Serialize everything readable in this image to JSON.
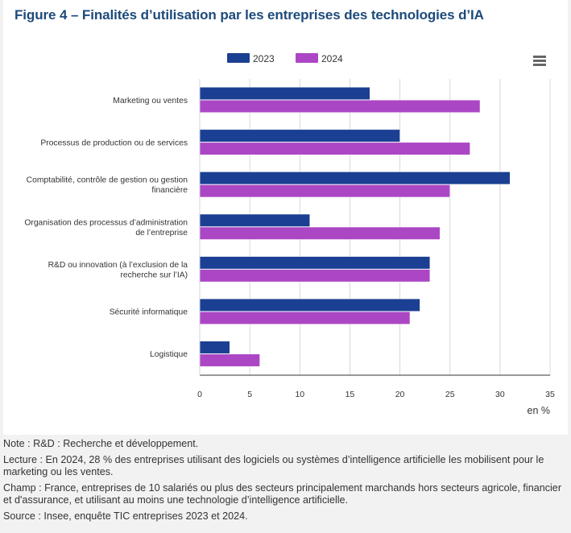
{
  "figure_title": "Figure 4 – Finalités d’utilisation par les entreprises des technologies d’IA",
  "menu_icon": "hamburger-menu-icon",
  "colors": {
    "series_2023": "#1b3f92",
    "series_2024": "#ab47c4",
    "title": "#1d4a7a",
    "grid": "#d8d8d8",
    "axis": "#333333"
  },
  "chart_data": {
    "type": "bar",
    "orientation": "horizontal",
    "categories": [
      [
        "Marketing ou ventes"
      ],
      [
        "Processus de production ou de services"
      ],
      [
        "Comptabilité, contrôle de gestion ou gestion",
        "financière"
      ],
      [
        "Organisation des processus d’administration",
        "de l’entreprise"
      ],
      [
        "R&D ou innovation (à l’exclusion de la",
        "recherche sur l’IA)"
      ],
      [
        "Sécurité informatique"
      ],
      [
        "Logistique"
      ]
    ],
    "series": [
      {
        "name": "2023",
        "values": [
          17,
          20,
          31,
          11,
          23,
          22,
          3
        ]
      },
      {
        "name": "2024",
        "values": [
          28,
          27,
          25,
          24,
          23,
          21,
          6
        ]
      }
    ],
    "xlim": [
      0,
      35
    ],
    "xticks": [
      0,
      5,
      10,
      15,
      20,
      25,
      30,
      35
    ],
    "xlabel": "en %",
    "grid": true,
    "legend_position": "top"
  },
  "notes": [
    {
      "label": "Note : ",
      "text": "R&D : Recherche et développement."
    },
    {
      "label": "Lecture : ",
      "text": "En 2024, 28 % des entreprises utilisant des logiciels ou systèmes d’intelligence artificielle les mobilisent pour le marketing ou les ventes."
    },
    {
      "label": "Champ : ",
      "text": "France, entreprises de 10 salariés ou plus des secteurs principalement marchands hors secteurs agricole, financier et d'assurance, et utilisant au moins une technologie d’intelligence artificielle."
    },
    {
      "label": "Source : ",
      "text": "Insee, enquête TIC entreprises 2023 et 2024."
    }
  ]
}
